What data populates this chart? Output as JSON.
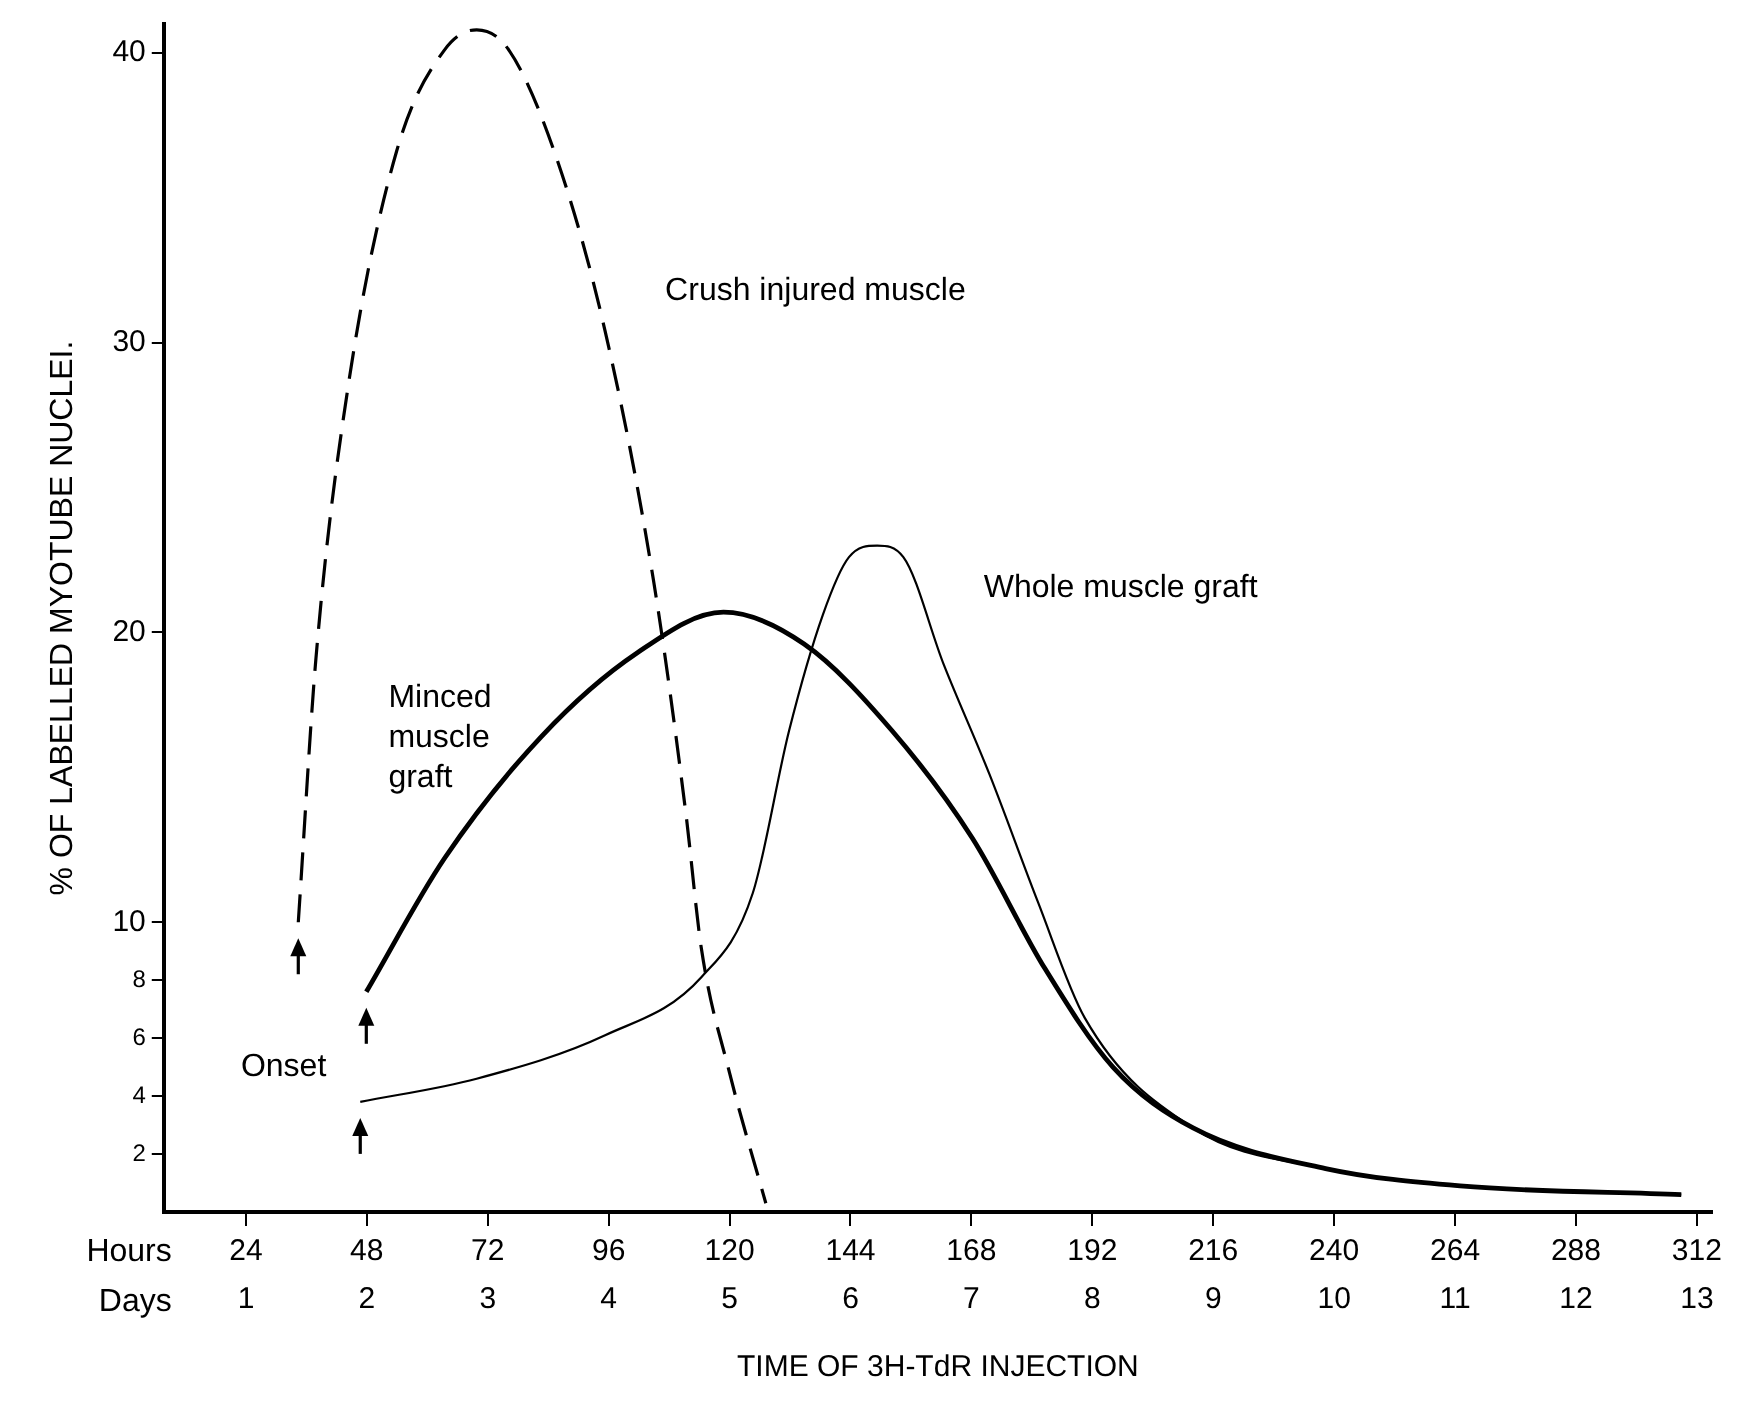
{
  "chart_data": {
    "type": "line",
    "xlabel": "TIME OF 3H-TdR INJECTION",
    "ylabel": "% OF LABELLED MYOTUBE NUCLEI.",
    "xlim": [
      7.7,
      315
    ],
    "xticks": [
      24,
      48,
      72,
      96,
      120,
      144,
      168,
      192,
      216,
      240,
      264,
      288,
      312
    ],
    "x2lim": [
      0.32,
      13.125
    ],
    "x2ticks": [
      1,
      2,
      3,
      4,
      5,
      6,
      7,
      8,
      9,
      10,
      11,
      12,
      13
    ],
    "ylim": [
      0,
      41
    ],
    "yticks": [
      2,
      4,
      6,
      8,
      10,
      20,
      30,
      40
    ],
    "grid": false,
    "legend": false,
    "marker": "none",
    "annotations": [
      "Hours",
      "Days",
      "Onset"
    ],
    "series": [
      {
        "name": "Crush injured muscle",
        "color": "#000000",
        "line_style": "dashed",
        "x": [
          34.4,
          37.9,
          44.3,
          53.9,
          63.4,
          69.8,
          76.2,
          85.8,
          95.3,
          104.9,
          111.3,
          114.4,
          120,
          127.2
        ],
        "values": [
          10,
          19.1,
          28.5,
          36.6,
          40.1,
          40.8,
          40.1,
          36.3,
          30.4,
          21.8,
          13.8,
          9.1,
          4.8,
          0.3
        ]
      },
      {
        "name": "Minced muscle graft",
        "color": "#000000",
        "line_style": "solid",
        "x": [
          47.9,
          63.4,
          82.6,
          101.7,
          118.8,
          134.8,
          152.3,
          168.2,
          182.6,
          196.1,
          212,
          238.3,
          265,
          308.9
        ],
        "values": [
          7.6,
          12.2,
          16.4,
          19.3,
          20.7,
          19.6,
          16.6,
          12.9,
          8.4,
          5,
          2.9,
          1.5,
          0.9,
          0.6
        ]
      },
      {
        "name": "Whole muscle graft",
        "color": "#000000",
        "line_style": "solid",
        "x": [
          46.7,
          69.8,
          95.3,
          114.4,
          124.6,
          131.8,
          138.5,
          143.7,
          149.3,
          154.5,
          162.5,
          171.6,
          181.2,
          190.5,
          212,
          238.3,
          265,
          308.9
        ],
        "values": [
          3.8,
          4.6,
          6.1,
          8.1,
          11,
          16.6,
          20.6,
          22.6,
          23,
          22.6,
          18.9,
          15.1,
          10.7,
          6.7,
          2.9,
          1.5,
          0.9,
          0.6
        ]
      }
    ]
  }
}
